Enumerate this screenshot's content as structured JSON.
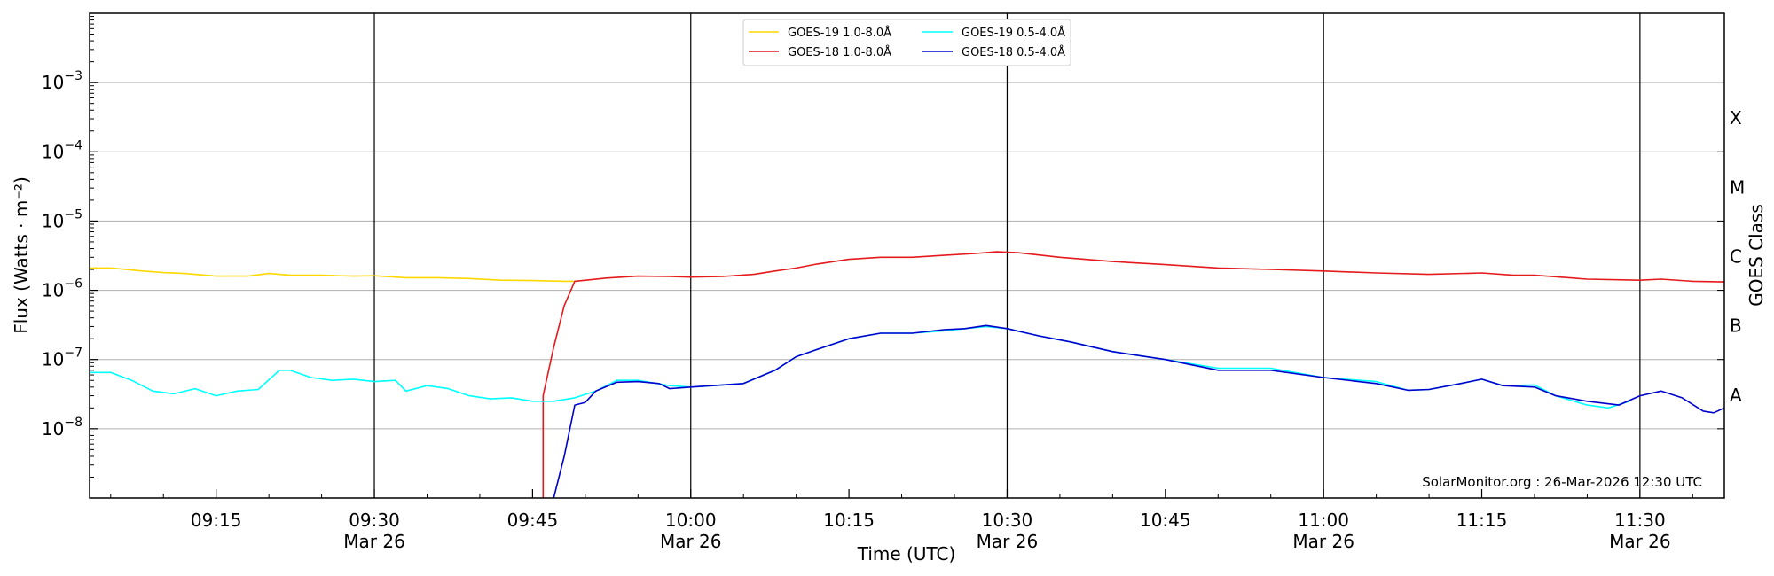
{
  "chart_data": {
    "type": "line",
    "xlabel": "Time (UTC)",
    "ylabel": "Flux (Watts · m⁻²)",
    "right_label": "GOES Class",
    "credit": "SolarMonitor.org : 26-Mar-2026 12:30 UTC",
    "y_scale": "log",
    "ylim": [
      1e-09,
      0.01
    ],
    "xlim": [
      "09:03",
      "11:38"
    ],
    "grid": "horizontal at decades",
    "legend_position": "top-center",
    "x_ticks": [
      {
        "time": "09:15",
        "label": "09:15",
        "date": ""
      },
      {
        "time": "09:30",
        "label": "09:30",
        "date": "Mar 26"
      },
      {
        "time": "09:45",
        "label": "09:45",
        "date": ""
      },
      {
        "time": "10:00",
        "label": "10:00",
        "date": "Mar 26"
      },
      {
        "time": "10:15",
        "label": "10:15",
        "date": ""
      },
      {
        "time": "10:30",
        "label": "10:30",
        "date": "Mar 26"
      },
      {
        "time": "10:45",
        "label": "10:45",
        "date": ""
      },
      {
        "time": "11:00",
        "label": "11:00",
        "date": "Mar 26"
      },
      {
        "time": "11:15",
        "label": "11:15",
        "date": ""
      },
      {
        "time": "11:30",
        "label": "11:30",
        "date": "Mar 26"
      }
    ],
    "y_ticks": [
      {
        "value": 1e-08,
        "base": "10",
        "exp": "−8"
      },
      {
        "value": 1e-07,
        "base": "10",
        "exp": "−7"
      },
      {
        "value": 1e-06,
        "base": "10",
        "exp": "−6"
      },
      {
        "value": 1e-05,
        "base": "10",
        "exp": "−5"
      },
      {
        "value": 0.0001,
        "base": "10",
        "exp": "−4"
      },
      {
        "value": 0.001,
        "base": "10",
        "exp": "−3"
      }
    ],
    "vertical_lines": [
      "09:30",
      "10:00",
      "10:30",
      "11:00",
      "11:30"
    ],
    "goes_classes": [
      {
        "label": "A",
        "value": 1e-08
      },
      {
        "label": "B",
        "value": 1e-07
      },
      {
        "label": "C",
        "value": 1e-06
      },
      {
        "label": "M",
        "value": 1e-05
      },
      {
        "label": "X",
        "value": 0.0001
      }
    ],
    "series": [
      {
        "name": "GOES-19 1.0-8.0Å",
        "color": "#ffd700",
        "points": [
          [
            "09:03",
            2.1e-06
          ],
          [
            "09:05",
            2.1e-06
          ],
          [
            "09:08",
            1.9e-06
          ],
          [
            "09:10",
            1.8e-06
          ],
          [
            "09:12",
            1.75e-06
          ],
          [
            "09:15",
            1.6e-06
          ],
          [
            "09:18",
            1.6e-06
          ],
          [
            "09:20",
            1.75e-06
          ],
          [
            "09:22",
            1.65e-06
          ],
          [
            "09:25",
            1.65e-06
          ],
          [
            "09:28",
            1.6e-06
          ],
          [
            "09:30",
            1.62e-06
          ],
          [
            "09:33",
            1.52e-06
          ],
          [
            "09:36",
            1.52e-06
          ],
          [
            "09:39",
            1.48e-06
          ],
          [
            "09:42",
            1.4e-06
          ],
          [
            "09:45",
            1.38e-06
          ],
          [
            "09:48",
            1.35e-06
          ],
          [
            "09:49",
            1.35e-06
          ]
        ]
      },
      {
        "name": "GOES-18 1.0-8.0Å",
        "color": "#e41a1c",
        "points": [
          [
            "09:46",
            1e-09
          ],
          [
            "09:46",
            3e-08
          ],
          [
            "09:47",
            1.5e-07
          ],
          [
            "09:48",
            6e-07
          ],
          [
            "09:49",
            1.35e-06
          ],
          [
            "09:52",
            1.5e-06
          ],
          [
            "09:55",
            1.6e-06
          ],
          [
            "09:58",
            1.58e-06
          ],
          [
            "10:00",
            1.55e-06
          ],
          [
            "10:03",
            1.58e-06
          ],
          [
            "10:06",
            1.7e-06
          ],
          [
            "10:08",
            1.9e-06
          ],
          [
            "10:10",
            2.1e-06
          ],
          [
            "10:12",
            2.4e-06
          ],
          [
            "10:15",
            2.8e-06
          ],
          [
            "10:18",
            3e-06
          ],
          [
            "10:21",
            3e-06
          ],
          [
            "10:24",
            3.2e-06
          ],
          [
            "10:27",
            3.4e-06
          ],
          [
            "10:29",
            3.6e-06
          ],
          [
            "10:31",
            3.5e-06
          ],
          [
            "10:35",
            3e-06
          ],
          [
            "10:40",
            2.6e-06
          ],
          [
            "10:45",
            2.35e-06
          ],
          [
            "10:50",
            2.1e-06
          ],
          [
            "10:55",
            2e-06
          ],
          [
            "11:00",
            1.9e-06
          ],
          [
            "11:05",
            1.78e-06
          ],
          [
            "11:10",
            1.7e-06
          ],
          [
            "11:15",
            1.78e-06
          ],
          [
            "11:18",
            1.65e-06
          ],
          [
            "11:20",
            1.65e-06
          ],
          [
            "11:25",
            1.45e-06
          ],
          [
            "11:30",
            1.4e-06
          ],
          [
            "11:32",
            1.45e-06
          ],
          [
            "11:35",
            1.35e-06
          ],
          [
            "11:38",
            1.32e-06
          ]
        ]
      },
      {
        "name": "GOES-19 0.5-4.0Å",
        "color": "#00ffff",
        "points": [
          [
            "09:03",
            6.5e-08
          ],
          [
            "09:05",
            6.5e-08
          ],
          [
            "09:07",
            5e-08
          ],
          [
            "09:09",
            3.5e-08
          ],
          [
            "09:11",
            3.2e-08
          ],
          [
            "09:13",
            3.8e-08
          ],
          [
            "09:15",
            3e-08
          ],
          [
            "09:17",
            3.5e-08
          ],
          [
            "09:19",
            3.7e-08
          ],
          [
            "09:21",
            7e-08
          ],
          [
            "09:22",
            7e-08
          ],
          [
            "09:24",
            5.5e-08
          ],
          [
            "09:26",
            5e-08
          ],
          [
            "09:28",
            5.2e-08
          ],
          [
            "09:30",
            4.8e-08
          ],
          [
            "09:32",
            5e-08
          ],
          [
            "09:33",
            3.5e-08
          ],
          [
            "09:35",
            4.2e-08
          ],
          [
            "09:37",
            3.8e-08
          ],
          [
            "09:39",
            3e-08
          ],
          [
            "09:41",
            2.7e-08
          ],
          [
            "09:43",
            2.8e-08
          ],
          [
            "09:45",
            2.5e-08
          ],
          [
            "09:47",
            2.5e-08
          ],
          [
            "09:49",
            2.8e-08
          ],
          [
            "09:51",
            3.5e-08
          ],
          [
            "09:53",
            5e-08
          ],
          [
            "09:55",
            5e-08
          ],
          [
            "09:58",
            4.2e-08
          ],
          [
            "10:00",
            4e-08
          ],
          [
            "10:03",
            4.3e-08
          ],
          [
            "10:05",
            4.5e-08
          ],
          [
            "10:08",
            7e-08
          ],
          [
            "10:10",
            1.1e-07
          ],
          [
            "10:12",
            1.4e-07
          ],
          [
            "10:15",
            2e-07
          ],
          [
            "10:18",
            2.4e-07
          ],
          [
            "10:21",
            2.4e-07
          ],
          [
            "10:24",
            2.6e-07
          ],
          [
            "10:26",
            2.8e-07
          ],
          [
            "10:28",
            3e-07
          ],
          [
            "10:30",
            2.8e-07
          ],
          [
            "10:33",
            2.2e-07
          ],
          [
            "10:36",
            1.8e-07
          ],
          [
            "10:40",
            1.3e-07
          ],
          [
            "10:45",
            1e-07
          ],
          [
            "10:50",
            7.5e-08
          ],
          [
            "10:55",
            7.5e-08
          ],
          [
            "11:00",
            5.5e-08
          ],
          [
            "11:05",
            4.8e-08
          ],
          [
            "11:08",
            3.6e-08
          ],
          [
            "11:10",
            3.7e-08
          ],
          [
            "11:13",
            4.5e-08
          ],
          [
            "11:15",
            5.2e-08
          ],
          [
            "11:17",
            4.2e-08
          ],
          [
            "11:20",
            4.3e-08
          ],
          [
            "11:22",
            3e-08
          ],
          [
            "11:25",
            2.2e-08
          ],
          [
            "11:27",
            2e-08
          ],
          [
            "11:29",
            2.5e-08
          ]
        ]
      },
      {
        "name": "GOES-18 0.5-4.0Å",
        "color": "#0000cd",
        "points": [
          [
            "09:47",
            1e-09
          ],
          [
            "09:48",
            4e-09
          ],
          [
            "09:49",
            2.2e-08
          ],
          [
            "09:50",
            2.4e-08
          ],
          [
            "09:51",
            3.5e-08
          ],
          [
            "09:53",
            4.7e-08
          ],
          [
            "09:55",
            4.8e-08
          ],
          [
            "09:57",
            4.5e-08
          ],
          [
            "09:58",
            3.8e-08
          ],
          [
            "10:00",
            4e-08
          ],
          [
            "10:03",
            4.3e-08
          ],
          [
            "10:05",
            4.5e-08
          ],
          [
            "10:08",
            7e-08
          ],
          [
            "10:10",
            1.1e-07
          ],
          [
            "10:12",
            1.4e-07
          ],
          [
            "10:15",
            2e-07
          ],
          [
            "10:18",
            2.4e-07
          ],
          [
            "10:21",
            2.4e-07
          ],
          [
            "10:24",
            2.7e-07
          ],
          [
            "10:26",
            2.8e-07
          ],
          [
            "10:28",
            3.1e-07
          ],
          [
            "10:30",
            2.8e-07
          ],
          [
            "10:33",
            2.2e-07
          ],
          [
            "10:36",
            1.8e-07
          ],
          [
            "10:40",
            1.3e-07
          ],
          [
            "10:45",
            1e-07
          ],
          [
            "10:50",
            7e-08
          ],
          [
            "10:55",
            7e-08
          ],
          [
            "11:00",
            5.5e-08
          ],
          [
            "11:05",
            4.5e-08
          ],
          [
            "11:08",
            3.6e-08
          ],
          [
            "11:10",
            3.7e-08
          ],
          [
            "11:13",
            4.5e-08
          ],
          [
            "11:15",
            5.2e-08
          ],
          [
            "11:17",
            4.2e-08
          ],
          [
            "11:20",
            4e-08
          ],
          [
            "11:22",
            3e-08
          ],
          [
            "11:25",
            2.5e-08
          ],
          [
            "11:28",
            2.2e-08
          ],
          [
            "11:30",
            3e-08
          ],
          [
            "11:32",
            3.5e-08
          ],
          [
            "11:34",
            2.8e-08
          ],
          [
            "11:36",
            1.8e-08
          ],
          [
            "11:37",
            1.7e-08
          ],
          [
            "11:38",
            2e-08
          ]
        ]
      }
    ],
    "legend_layout": [
      [
        "GOES-19 1.0-8.0Å",
        "GOES-19 0.5-4.0Å"
      ],
      [
        "GOES-18 1.0-8.0Å",
        "GOES-18 0.5-4.0Å"
      ]
    ]
  }
}
